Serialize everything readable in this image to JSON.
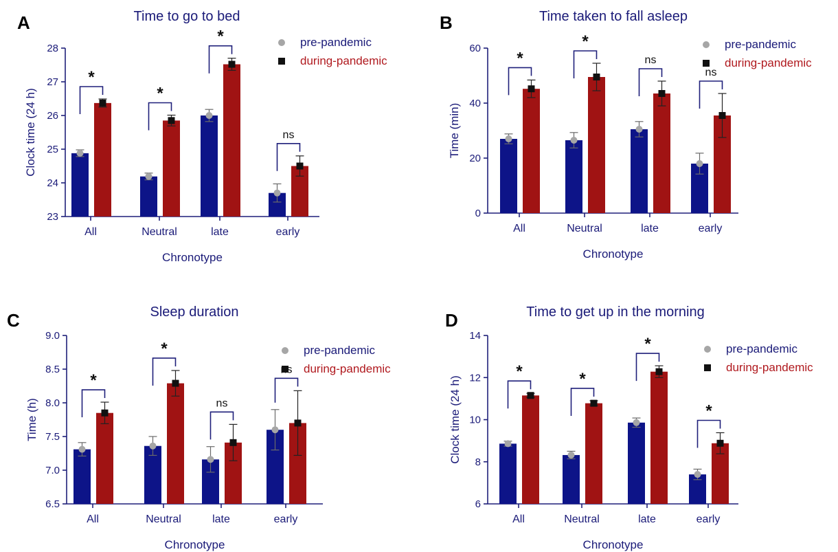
{
  "legend": {
    "pre_label": "pre-pandemic",
    "during_label": "during-pandemic",
    "pre_marker": "gray-circle",
    "during_marker": "black-square"
  },
  "colors": {
    "pre_bar": "#0d1488",
    "during_bar": "#a01313",
    "pre_marker": "#a6a6a6",
    "during_marker": "#111111",
    "axis": "#1e1f7a",
    "text": "#1a1a78",
    "legend_during_text": "#b0191e"
  },
  "chart_data": [
    {
      "panel": "A",
      "type": "bar",
      "title": "Time to go to bed",
      "xlabel": "Chronotype",
      "ylabel": "Clock time (24 h)",
      "ylim": [
        23,
        28
      ],
      "yticks": [
        23,
        24,
        25,
        26,
        27,
        28
      ],
      "categories": [
        "All",
        "Neutral",
        "late",
        "early"
      ],
      "series": [
        {
          "name": "pre-pandemic",
          "values": [
            24.88,
            24.19,
            26.0,
            23.7
          ],
          "errors": [
            0.1,
            0.1,
            0.18,
            0.27
          ]
        },
        {
          "name": "during-pandemic",
          "values": [
            26.37,
            25.85,
            27.52,
            24.5
          ],
          "errors": [
            0.12,
            0.16,
            0.18,
            0.3
          ]
        }
      ],
      "significance": [
        "*",
        "*",
        "*",
        "ns"
      ]
    },
    {
      "panel": "B",
      "type": "bar",
      "title": "Time taken to fall asleep",
      "xlabel": "Chronotype",
      "ylabel": "Time (min)",
      "ylim": [
        0,
        60
      ],
      "yticks": [
        0,
        20,
        40,
        60
      ],
      "categories": [
        "All",
        "Neutral",
        "late",
        "early"
      ],
      "series": [
        {
          "name": "pre-pandemic",
          "values": [
            27,
            26.5,
            30.5,
            18
          ],
          "errors": [
            1.8,
            2.8,
            2.8,
            3.8
          ]
        },
        {
          "name": "during-pandemic",
          "values": [
            45.2,
            49.5,
            43.5,
            35.5
          ],
          "errors": [
            3.2,
            5.0,
            4.5,
            8.0
          ]
        }
      ],
      "significance": [
        "*",
        "*",
        "ns",
        "ns"
      ]
    },
    {
      "panel": "C",
      "type": "bar",
      "title": "Sleep duration",
      "xlabel": "Chronotype",
      "ylabel": "Time (h)",
      "ylim": [
        6.5,
        9.0
      ],
      "yticks": [
        "6.5",
        "7.0",
        "7.5",
        "8.0",
        "8.5",
        "9.0"
      ],
      "categories": [
        "All",
        "Neutral",
        "late",
        "early"
      ],
      "series": [
        {
          "name": "pre-pandemic",
          "values": [
            7.31,
            7.36,
            7.16,
            7.6
          ],
          "errors": [
            0.1,
            0.14,
            0.19,
            0.3
          ]
        },
        {
          "name": "during-pandemic",
          "values": [
            7.85,
            8.29,
            7.41,
            7.7
          ],
          "errors": [
            0.16,
            0.19,
            0.27,
            0.48
          ]
        }
      ],
      "significance": [
        "*",
        "*",
        "ns",
        "ns"
      ]
    },
    {
      "panel": "D",
      "type": "bar",
      "title": "Time to get up in the morning",
      "xlabel": "Chronotype",
      "ylabel": "Clock time (24 h)",
      "ylim": [
        6,
        14
      ],
      "yticks": [
        6,
        8,
        10,
        12,
        14
      ],
      "categories": [
        "All",
        "Neutral",
        "late",
        "early"
      ],
      "series": [
        {
          "name": "pre-pandemic",
          "values": [
            8.86,
            8.32,
            9.86,
            7.4
          ],
          "errors": [
            0.12,
            0.18,
            0.22,
            0.25
          ]
        },
        {
          "name": "during-pandemic",
          "values": [
            11.15,
            10.78,
            12.28,
            8.88
          ],
          "errors": [
            0.1,
            0.12,
            0.28,
            0.5
          ]
        }
      ],
      "significance": [
        "*",
        "*",
        "*",
        "*"
      ]
    }
  ]
}
